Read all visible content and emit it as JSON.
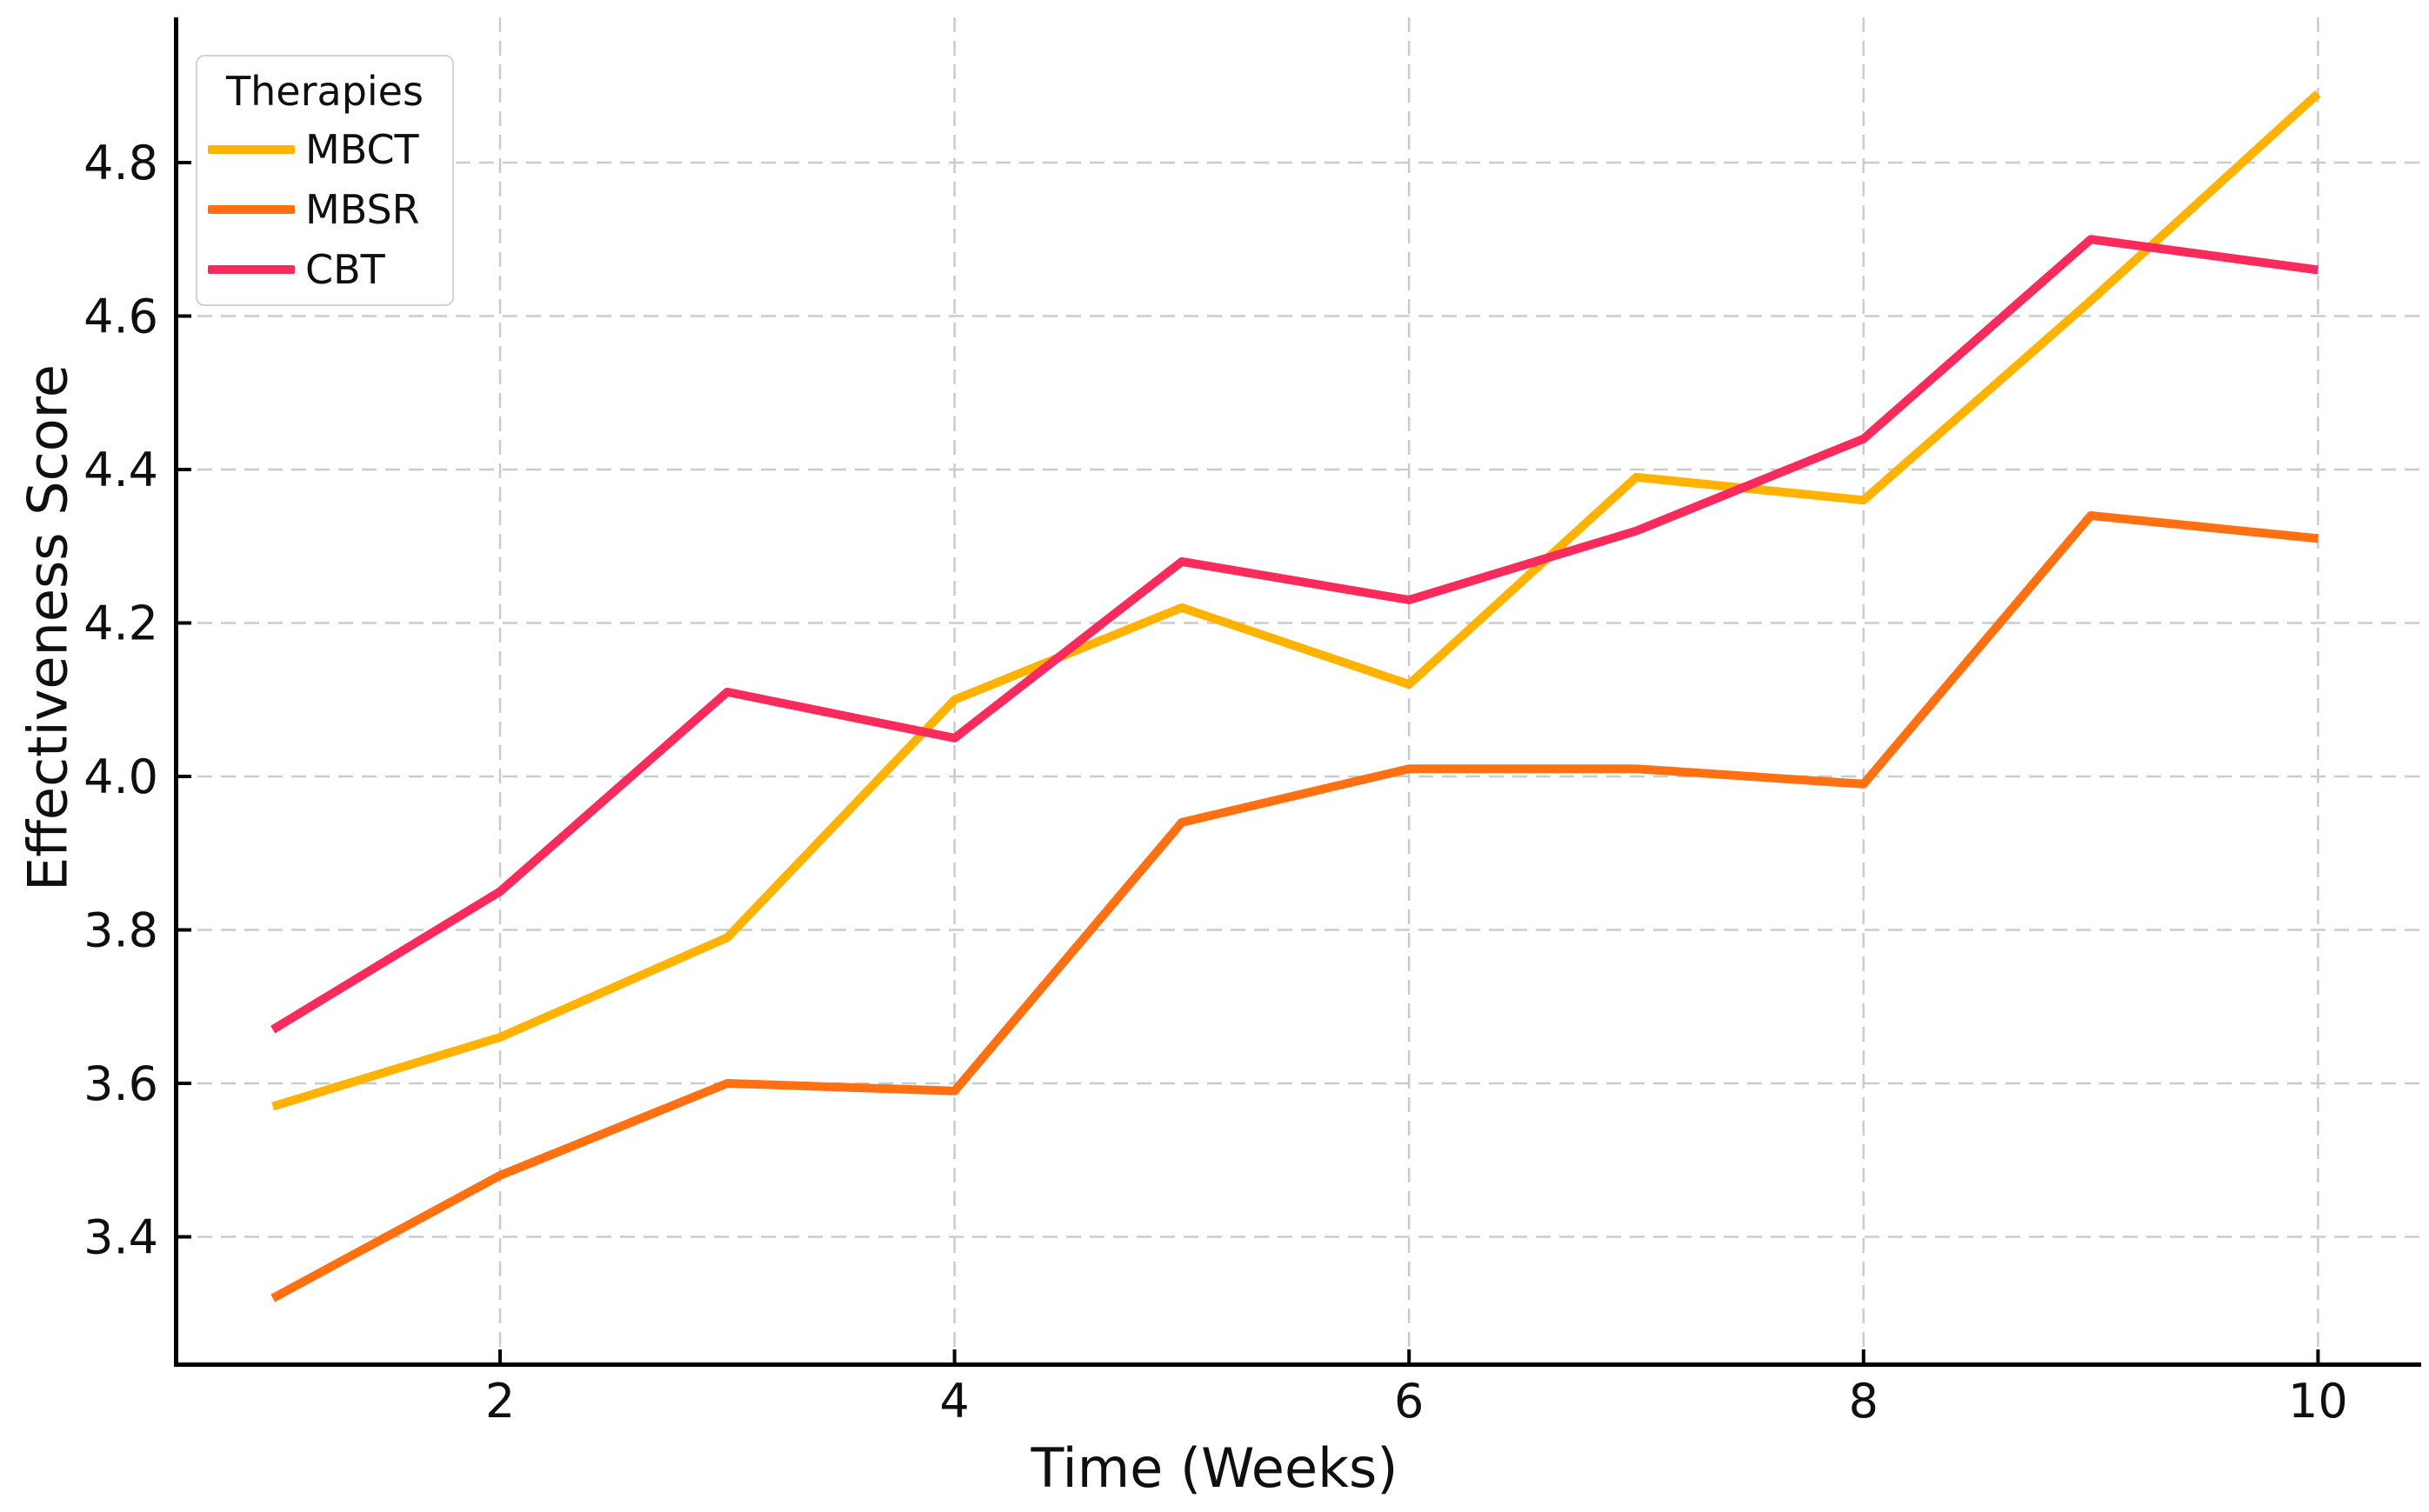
{
  "chart_data": {
    "type": "line",
    "x": [
      1,
      2,
      3,
      4,
      5,
      6,
      7,
      8,
      9,
      10
    ],
    "series": [
      {
        "name": "MBCT",
        "color": "#FFB300",
        "values": [
          3.57,
          3.66,
          3.79,
          4.1,
          4.22,
          4.12,
          4.39,
          4.36,
          4.62,
          4.89
        ]
      },
      {
        "name": "MBSR",
        "color": "#FF7012",
        "values": [
          3.32,
          3.48,
          3.6,
          3.59,
          3.94,
          4.01,
          4.01,
          3.99,
          4.34,
          4.31
        ]
      },
      {
        "name": "CBT",
        "color": "#F92A5C",
        "values": [
          3.67,
          3.85,
          4.11,
          4.05,
          4.28,
          4.23,
          4.32,
          4.44,
          4.7,
          4.66
        ]
      }
    ],
    "title": "",
    "xlabel": "Time (Weeks)",
    "ylabel": "Effectiveness Score",
    "x_ticks": {
      "values": [
        2,
        4,
        6,
        8,
        10
      ],
      "labels": [
        "2",
        "4",
        "6",
        "8",
        "10"
      ]
    },
    "y_ticks": {
      "values": [
        3.4,
        3.6,
        3.8,
        4.0,
        4.2,
        4.4,
        4.6,
        4.8
      ],
      "labels": [
        "3.4",
        "3.6",
        "3.8",
        "4.0",
        "4.2",
        "4.4",
        "4.6",
        "4.8"
      ]
    },
    "xlim": [
      0.57,
      10.44
    ],
    "ylim": [
      3.23,
      4.99
    ],
    "grid": {
      "show": true,
      "style": "dashed",
      "color": "#cbcbcb"
    },
    "legend": {
      "title": "Therapies",
      "position": "upper left",
      "entries": [
        "MBCT",
        "MBSR",
        "CBT"
      ]
    }
  }
}
